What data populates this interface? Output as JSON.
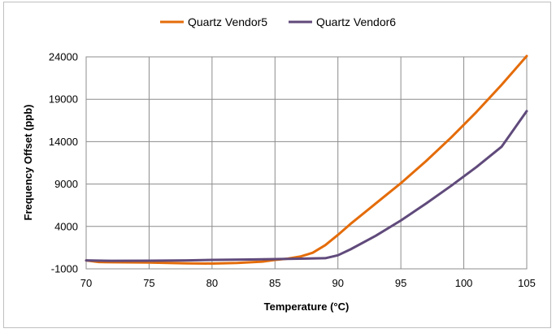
{
  "chart_data": {
    "type": "line",
    "xlabel": "Temperature (°C)",
    "ylabel": "Frequency Offset (ppb)",
    "xlim": [
      70,
      105
    ],
    "ylim": [
      -1000,
      24000
    ],
    "x_ticks": [
      70,
      75,
      80,
      85,
      90,
      95,
      100,
      105
    ],
    "y_ticks": [
      -1000,
      4000,
      9000,
      14000,
      19000,
      24000
    ],
    "x_tick_labels": [
      "70",
      "75",
      "80",
      "85",
      "90",
      "95",
      "100",
      "105"
    ],
    "y_tick_labels": [
      "-1000",
      "4000",
      "9000",
      "14000",
      "19000",
      "24000"
    ],
    "grid": true,
    "legend_position": "top-center",
    "series": [
      {
        "name": "Quartz Vendor5",
        "color": "#e46c0a",
        "x": [
          70,
          71,
          72,
          75,
          78,
          80,
          82,
          84,
          85,
          86,
          87,
          88,
          89,
          90,
          91,
          93,
          95,
          97,
          99,
          101,
          103,
          105
        ],
        "y": [
          0,
          -200,
          -220,
          -250,
          -350,
          -380,
          -300,
          -150,
          50,
          200,
          450,
          900,
          1800,
          3000,
          4300,
          6700,
          9100,
          11700,
          14500,
          17500,
          20700,
          24100
        ]
      },
      {
        "name": "Quartz Vendor6",
        "color": "#604a7b",
        "x": [
          70,
          72,
          75,
          78,
          80,
          83,
          85,
          87,
          89,
          90,
          91,
          93,
          95,
          97,
          99,
          101,
          103,
          105
        ],
        "y": [
          0,
          -50,
          -40,
          0,
          50,
          100,
          150,
          200,
          250,
          600,
          1300,
          2900,
          4700,
          6700,
          8800,
          11000,
          13400,
          17600
        ]
      }
    ]
  }
}
